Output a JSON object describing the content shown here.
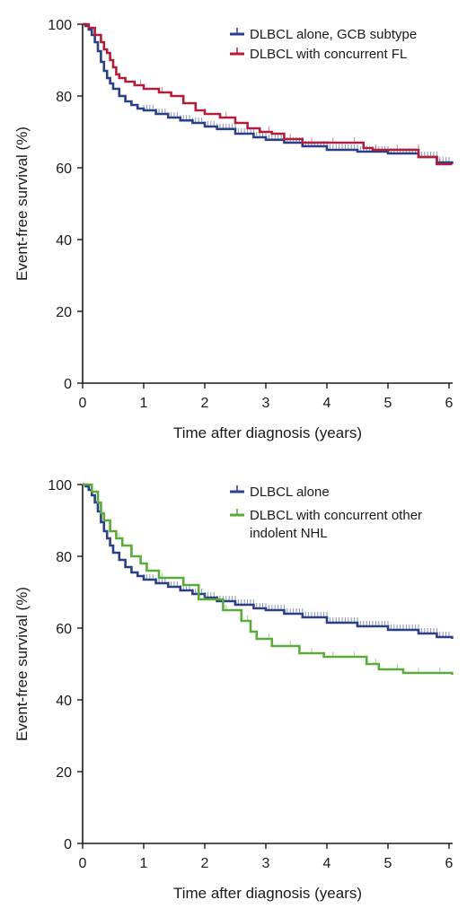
{
  "chart_data": [
    {
      "type": "line",
      "step": true,
      "xlabel": "Time after diagnosis (years)",
      "ylabel": "Event-free survival (%)",
      "xlim": [
        0,
        6
      ],
      "ylim": [
        0,
        100
      ],
      "xticks": [
        0,
        1,
        2,
        3,
        4,
        5,
        6
      ],
      "yticks": [
        0,
        20,
        40,
        60,
        80,
        100
      ],
      "grid": false,
      "legend_position": "top-right",
      "colors": {
        "blue": "#2b3f85",
        "red": "#b01e3c"
      },
      "series": [
        {
          "name": "DLBCL alone, GCB subtype",
          "color": "#2b3f85",
          "x": [
            0,
            0.05,
            0.1,
            0.15,
            0.2,
            0.25,
            0.3,
            0.35,
            0.4,
            0.45,
            0.5,
            0.6,
            0.7,
            0.8,
            0.9,
            1.0,
            1.2,
            1.4,
            1.6,
            1.8,
            2.0,
            2.2,
            2.5,
            2.8,
            3.0,
            3.3,
            3.6,
            4.0,
            4.5,
            5.0,
            5.5,
            5.8,
            6.05
          ],
          "y": [
            100,
            99.5,
            98.5,
            97,
            95,
            92.5,
            89.5,
            87,
            85,
            83.5,
            82,
            80,
            78.5,
            77.5,
            76.5,
            76,
            75,
            74,
            73.2,
            72.5,
            71.5,
            70.8,
            69.5,
            68.5,
            67.8,
            67,
            66,
            65,
            64.5,
            64,
            63,
            61.5,
            61
          ]
        },
        {
          "name": "DLBCL with concurrent FL",
          "color": "#b01e3c",
          "x": [
            0,
            0.1,
            0.2,
            0.3,
            0.35,
            0.4,
            0.45,
            0.5,
            0.55,
            0.6,
            0.7,
            0.85,
            1.0,
            1.25,
            1.45,
            1.65,
            1.85,
            2.0,
            2.25,
            2.5,
            2.7,
            2.9,
            3.1,
            3.3,
            3.6,
            4.6,
            4.75,
            5.5,
            5.8,
            6.05
          ],
          "y": [
            100,
            99,
            97,
            95,
            93,
            92,
            90,
            88,
            86,
            85,
            84,
            83,
            82,
            81,
            80,
            78,
            76,
            75,
            74,
            72.5,
            71,
            70,
            69.5,
            68,
            67,
            65.5,
            65,
            63,
            61,
            61
          ]
        }
      ]
    },
    {
      "type": "line",
      "step": true,
      "xlabel": "Time after diagnosis (years)",
      "ylabel": "Event-free survival (%)",
      "xlim": [
        0,
        6
      ],
      "ylim": [
        0,
        100
      ],
      "xticks": [
        0,
        1,
        2,
        3,
        4,
        5,
        6
      ],
      "yticks": [
        0,
        20,
        40,
        60,
        80,
        100
      ],
      "grid": false,
      "legend_position": "top-right",
      "colors": {
        "blue": "#2b3f85",
        "green": "#5aab3a"
      },
      "series": [
        {
          "name": "DLBCL alone",
          "color": "#2b3f85",
          "x": [
            0,
            0.05,
            0.1,
            0.15,
            0.2,
            0.25,
            0.3,
            0.35,
            0.4,
            0.45,
            0.5,
            0.6,
            0.7,
            0.8,
            0.9,
            1.0,
            1.2,
            1.4,
            1.6,
            1.8,
            2.0,
            2.2,
            2.5,
            2.8,
            3.0,
            3.3,
            3.6,
            4.0,
            4.5,
            5.0,
            5.5,
            5.8,
            6.05
          ],
          "y": [
            100,
            99.5,
            98.5,
            97,
            95,
            92.5,
            89.5,
            87,
            85,
            83,
            81,
            79,
            77,
            75.5,
            74.5,
            73.5,
            72.5,
            71.5,
            70.5,
            69.5,
            68.5,
            67.5,
            66.5,
            65.5,
            65,
            64,
            63,
            61.5,
            60.5,
            59.5,
            58.5,
            57.5,
            57
          ]
        },
        {
          "name": "DLBCL with concurrent other indolent NHL",
          "color": "#5aab3a",
          "x": [
            0,
            0.15,
            0.25,
            0.3,
            0.35,
            0.45,
            0.55,
            0.65,
            0.8,
            0.95,
            1.05,
            1.25,
            1.65,
            1.9,
            2.3,
            2.6,
            2.75,
            2.85,
            3.1,
            3.55,
            3.95,
            4.65,
            4.85,
            5.25,
            6.05
          ],
          "y": [
            100,
            98,
            95,
            92,
            90,
            87,
            85,
            83,
            80,
            78,
            76,
            74,
            72,
            68,
            65,
            62,
            59,
            57,
            55,
            53,
            52,
            50,
            48.5,
            47.5,
            47
          ]
        }
      ]
    }
  ]
}
